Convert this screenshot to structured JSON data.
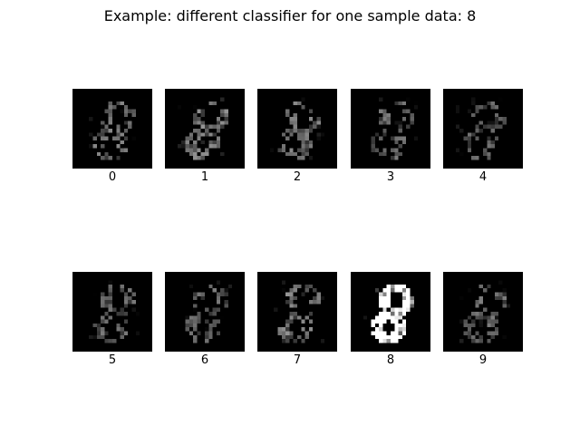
{
  "figure": {
    "title": "Example: different classifier for one sample data: 8"
  },
  "panels": [
    {
      "label": "0"
    },
    {
      "label": "1"
    },
    {
      "label": "2"
    },
    {
      "label": "3"
    },
    {
      "label": "4"
    },
    {
      "label": "5"
    },
    {
      "label": "6"
    },
    {
      "label": "7"
    },
    {
      "label": "8"
    },
    {
      "label": "9"
    }
  ],
  "colors": {
    "background": "#ffffff",
    "image_background": "#000000",
    "image_foreground": "#ffffff"
  }
}
